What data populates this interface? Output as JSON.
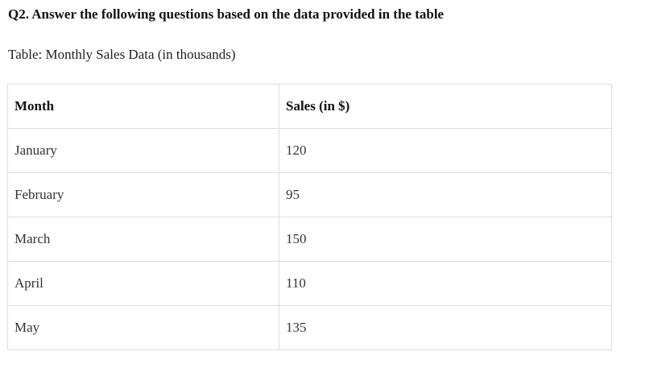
{
  "question": "Q2. Answer the following questions based on the data provided in the table",
  "caption": "Table: Monthly Sales Data (in thousands)",
  "table": {
    "headers": [
      "Month",
      "Sales (in $)"
    ],
    "rows": [
      [
        "January",
        "120"
      ],
      [
        "February",
        "95"
      ],
      [
        "March",
        "150"
      ],
      [
        "April",
        "110"
      ],
      [
        "May",
        "135"
      ]
    ]
  }
}
